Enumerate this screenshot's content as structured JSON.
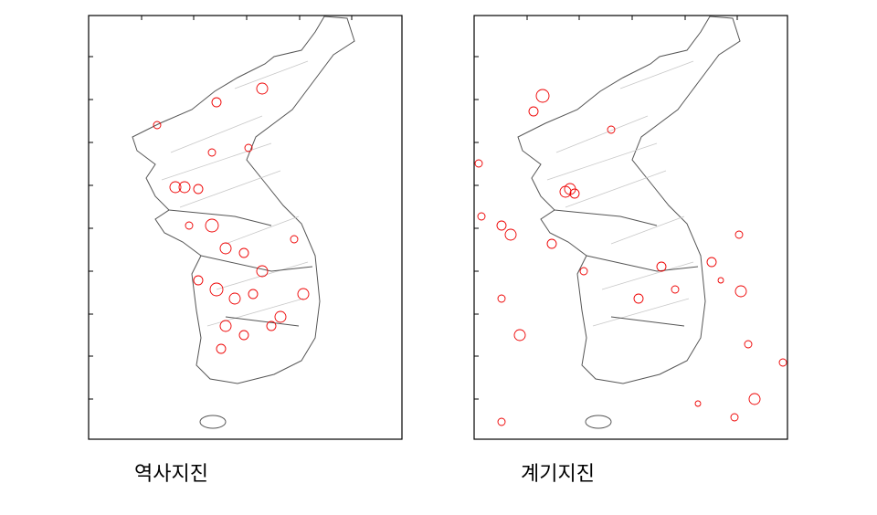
{
  "panels": [
    {
      "label": "역사지진"
    },
    {
      "label": "계기지진"
    }
  ]
}
